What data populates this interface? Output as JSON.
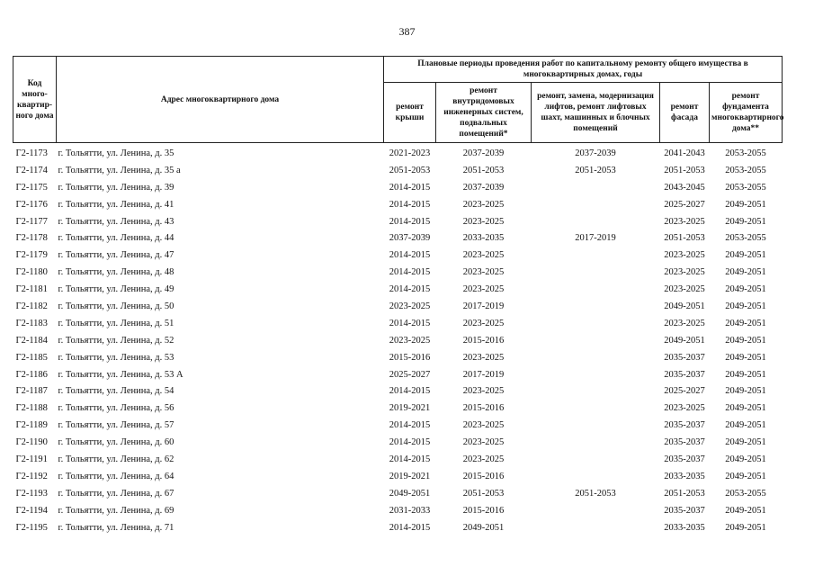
{
  "page_number": "387",
  "header": {
    "code": "Код много-квартир-ного дома",
    "address": "Адрес многоквартирного дома",
    "group": "Плановые периоды проведения работ по капитальному ремонту общего имущества в многоквартирных домах, годы",
    "columns": [
      "ремонт крыши",
      "ремонт внутридомовых инженерных систем, подвальных помещений*",
      "ремонт, замена, модернизация лифтов, ремонт лифтовых шахт, машинных и блочных помещений",
      "ремонт фасада",
      "ремонт фундамента многоквартирного дома**"
    ]
  },
  "rows": [
    [
      "Г2-1173",
      "г. Тольятти, ул. Ленина, д. 35",
      "2021-2023",
      "2037-2039",
      "2037-2039",
      "2041-2043",
      "2053-2055"
    ],
    [
      "Г2-1174",
      "г. Тольятти, ул. Ленина, д. 35 а",
      "2051-2053",
      "2051-2053",
      "2051-2053",
      "2051-2053",
      "2053-2055"
    ],
    [
      "Г2-1175",
      "г. Тольятти, ул. Ленина, д. 39",
      "2014-2015",
      "2037-2039",
      "",
      "2043-2045",
      "2053-2055"
    ],
    [
      "Г2-1176",
      "г. Тольятти, ул. Ленина, д. 41",
      "2014-2015",
      "2023-2025",
      "",
      "2025-2027",
      "2049-2051"
    ],
    [
      "Г2-1177",
      "г. Тольятти, ул. Ленина, д. 43",
      "2014-2015",
      "2023-2025",
      "",
      "2023-2025",
      "2049-2051"
    ],
    [
      "Г2-1178",
      "г. Тольятти, ул. Ленина, д. 44",
      "2037-2039",
      "2033-2035",
      "2017-2019",
      "2051-2053",
      "2053-2055"
    ],
    [
      "Г2-1179",
      "г. Тольятти, ул. Ленина, д. 47",
      "2014-2015",
      "2023-2025",
      "",
      "2023-2025",
      "2049-2051"
    ],
    [
      "Г2-1180",
      "г. Тольятти, ул. Ленина, д. 48",
      "2014-2015",
      "2023-2025",
      "",
      "2023-2025",
      "2049-2051"
    ],
    [
      "Г2-1181",
      "г. Тольятти, ул. Ленина, д. 49",
      "2014-2015",
      "2023-2025",
      "",
      "2023-2025",
      "2049-2051"
    ],
    [
      "Г2-1182",
      "г. Тольятти, ул. Ленина, д. 50",
      "2023-2025",
      "2017-2019",
      "",
      "2049-2051",
      "2049-2051"
    ],
    [
      "Г2-1183",
      "г. Тольятти, ул. Ленина, д. 51",
      "2014-2015",
      "2023-2025",
      "",
      "2023-2025",
      "2049-2051"
    ],
    [
      "Г2-1184",
      "г. Тольятти, ул. Ленина, д. 52",
      "2023-2025",
      "2015-2016",
      "",
      "2049-2051",
      "2049-2051"
    ],
    [
      "Г2-1185",
      "г. Тольятти, ул. Ленина, д. 53",
      "2015-2016",
      "2023-2025",
      "",
      "2035-2037",
      "2049-2051"
    ],
    [
      "Г2-1186",
      "г. Тольятти, ул. Ленина, д. 53 А",
      "2025-2027",
      "2017-2019",
      "",
      "2035-2037",
      "2049-2051"
    ],
    [
      "Г2-1187",
      "г. Тольятти, ул. Ленина, д. 54",
      "2014-2015",
      "2023-2025",
      "",
      "2025-2027",
      "2049-2051"
    ],
    [
      "Г2-1188",
      "г. Тольятти, ул. Ленина, д. 56",
      "2019-2021",
      "2015-2016",
      "",
      "2023-2025",
      "2049-2051"
    ],
    [
      "Г2-1189",
      "г. Тольятти, ул. Ленина, д. 57",
      "2014-2015",
      "2023-2025",
      "",
      "2035-2037",
      "2049-2051"
    ],
    [
      "Г2-1190",
      "г. Тольятти, ул. Ленина, д. 60",
      "2014-2015",
      "2023-2025",
      "",
      "2035-2037",
      "2049-2051"
    ],
    [
      "Г2-1191",
      "г. Тольятти, ул. Ленина, д. 62",
      "2014-2015",
      "2023-2025",
      "",
      "2035-2037",
      "2049-2051"
    ],
    [
      "Г2-1192",
      "г. Тольятти, ул. Ленина, д. 64",
      "2019-2021",
      "2015-2016",
      "",
      "2033-2035",
      "2049-2051"
    ],
    [
      "Г2-1193",
      "г. Тольятти, ул. Ленина, д. 67",
      "2049-2051",
      "2051-2053",
      "2051-2053",
      "2051-2053",
      "2053-2055"
    ],
    [
      "Г2-1194",
      "г. Тольятти, ул. Ленина, д. 69",
      "2031-2033",
      "2015-2016",
      "",
      "2035-2037",
      "2049-2051"
    ],
    [
      "Г2-1195",
      "г. Тольятти, ул. Ленина, д. 71",
      "2014-2015",
      "2049-2051",
      "",
      "2033-2035",
      "2049-2051"
    ]
  ]
}
